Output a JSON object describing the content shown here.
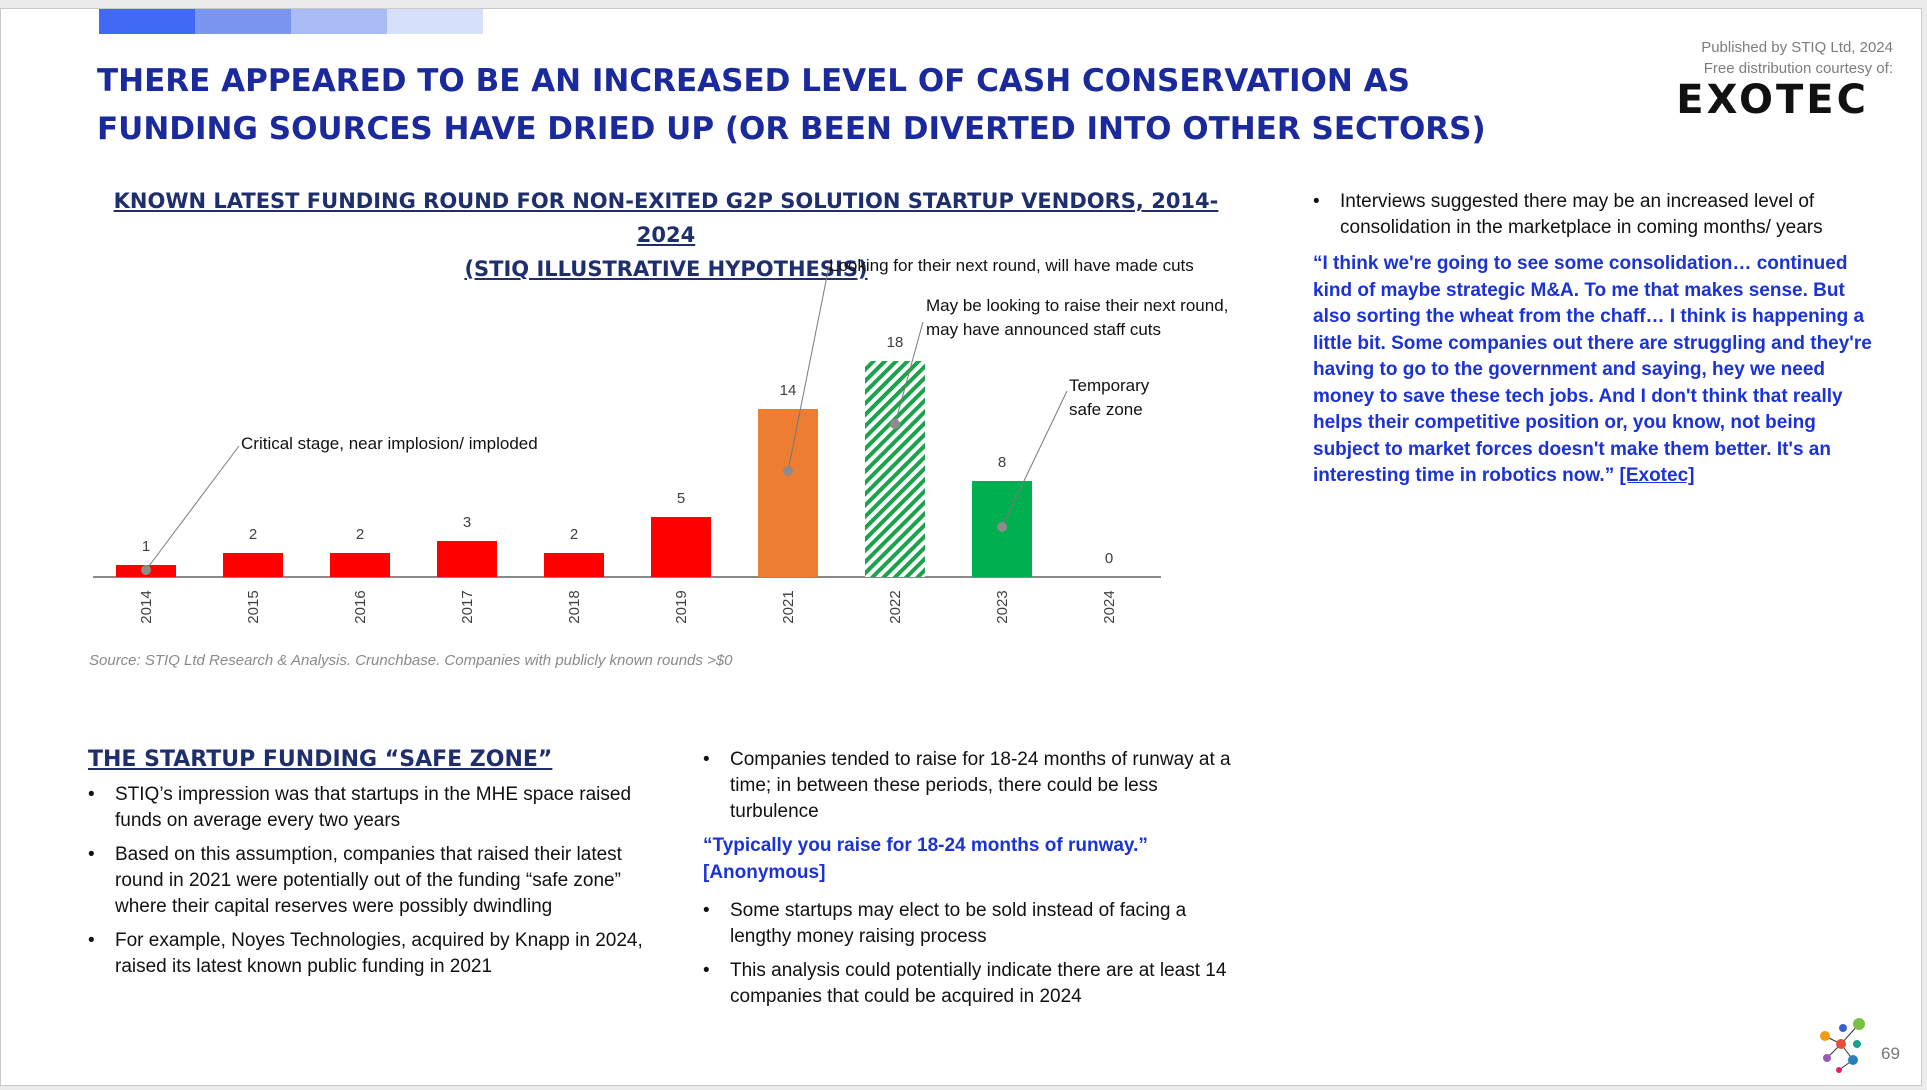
{
  "headline": "THERE APPEARED TO BE AN INCREASED LEVEL OF CASH CONSERVATION AS FUNDING SOURCES HAVE DRIED UP (OR BEEN DIVERTED INTO OTHER SECTORS)",
  "publisher": {
    "line1": "Published by STIQ Ltd, 2024",
    "line2": "Free distribution courtesy of:",
    "logo": "EXOTEC"
  },
  "chart_data": {
    "type": "bar",
    "title_line1": "KNOWN LATEST FUNDING ROUND FOR NON-EXITED G2P SOLUTION STARTUP VENDORS, 2014-2024",
    "title_line2": "(STIQ ILLUSTRATIVE HYPOTHESIS)",
    "categories": [
      "2014",
      "2015",
      "2016",
      "2017",
      "2018",
      "2019",
      "2021",
      "2022",
      "2023",
      "2024"
    ],
    "values": [
      1,
      2,
      2,
      3,
      2,
      5,
      14,
      18,
      8,
      0
    ],
    "colors": [
      "#ff0000",
      "#ff0000",
      "#ff0000",
      "#ff0000",
      "#ff0000",
      "#ff0000",
      "#ed7d31",
      "hatched-green",
      "#00b050",
      "#ff0000"
    ],
    "annotations": [
      {
        "text": "Critical stage, near implosion/ imploded",
        "category": "2014"
      },
      {
        "text": "Looking for their next round, will have made cuts",
        "category": "2021"
      },
      {
        "text": "May be looking to raise their next round, may have announced staff cuts",
        "category": "2022"
      },
      {
        "text": "Temporary safe zone",
        "category": "2023"
      }
    ],
    "ylim": [
      0,
      20
    ],
    "grid": false,
    "legend": "none"
  },
  "source": "Source: STIQ Ltd Research & Analysis. Crunchbase. Companies with publicly known rounds >$0",
  "right": {
    "bullet": "Interviews suggested there may be an increased level of consolidation in the marketplace in coming months/ years",
    "quote": "“I think we're going to see some consolidation… continued kind of maybe strategic M&A. To me that makes sense. But also sorting the wheat from the chaff… I think is happening a little bit. Some companies out there are struggling and they're having to go to the government and saying, hey we need money to save these tech jobs. And I don't think that really helps their competitive position or, you know, not being subject to market forces doesn't make them better. It's an interesting time in robotics now.”",
    "quote_source": "[Exotec]"
  },
  "safe_zone": {
    "title": "THE STARTUP FUNDING “SAFE ZONE”",
    "bullets": [
      "STIQ’s impression was that startups in the MHE space raised funds on average every two years",
      "Based on this assumption, companies that raised their latest round in 2021 were potentially out of the funding “safe zone” where their capital reserves were possibly dwindling",
      "For example, Noyes Technologies, acquired by Knapp in 2024, raised its latest known public funding in 2021"
    ]
  },
  "middle": {
    "bullet1": "Companies tended to raise for 18-24 months of runway at a time; in between these periods, there could be less turbulence",
    "quote": "“Typically you raise for 18-24 months of runway.”",
    "quote_source": "[Anonymous]",
    "bullets": [
      "Some startups may elect to be sold instead of facing a lengthy money raising process",
      "This analysis could potentially indicate there are at least 14 companies that could be acquired in 2024"
    ]
  },
  "page_number": "69"
}
